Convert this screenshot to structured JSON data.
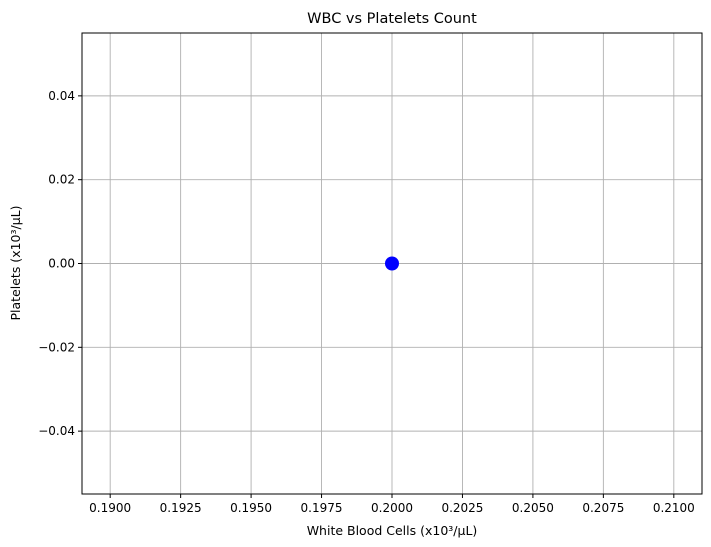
{
  "chart_data": {
    "type": "scatter",
    "title": "WBC vs Platelets Count",
    "xlabel": "White Blood Cells (x10³/µL)",
    "ylabel": "Platelets (x10³/µL)",
    "xlim": [
      0.189,
      0.211
    ],
    "ylim": [
      -0.055,
      0.055
    ],
    "xticks": [
      0.19,
      0.1925,
      0.195,
      0.1975,
      0.2,
      0.2025,
      0.205,
      0.2075,
      0.21
    ],
    "xtick_labels": [
      "0.1900",
      "0.1925",
      "0.1950",
      "0.1975",
      "0.2000",
      "0.2025",
      "0.2050",
      "0.2075",
      "0.2100"
    ],
    "yticks": [
      -0.04,
      -0.02,
      0.0,
      0.02,
      0.04
    ],
    "ytick_labels": [
      "−0.04",
      "−0.02",
      "0.00",
      "0.02",
      "0.04"
    ],
    "grid": true,
    "points": [
      {
        "x": 0.2,
        "y": 0.0
      }
    ],
    "point_color": "#0000ff"
  }
}
